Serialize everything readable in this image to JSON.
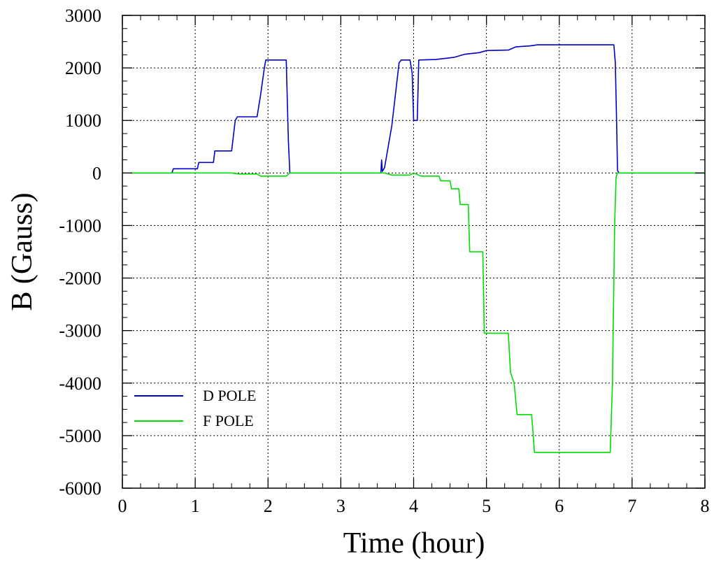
{
  "chart_data": {
    "type": "line",
    "xlabel": "Time (hour)",
    "ylabel": "B (Gauss)",
    "xlim": [
      0,
      8
    ],
    "ylim": [
      -6000,
      3000
    ],
    "x_ticks": [
      "0",
      "1",
      "2",
      "3",
      "4",
      "5",
      "6",
      "7",
      "8"
    ],
    "y_ticks": [
      "3000",
      "2000",
      "1000",
      "0",
      "-1000",
      "-2000",
      "-3000",
      "-4000",
      "-5000",
      "-6000"
    ],
    "grid": true,
    "legend_position": "bottom-left",
    "series": [
      {
        "name": "D POLE",
        "color": "#0000cc",
        "points": [
          [
            0.1,
            0
          ],
          [
            0.68,
            0
          ],
          [
            0.7,
            80
          ],
          [
            1.03,
            80
          ],
          [
            1.05,
            200
          ],
          [
            1.25,
            200
          ],
          [
            1.27,
            420
          ],
          [
            1.5,
            420
          ],
          [
            1.55,
            1000
          ],
          [
            1.58,
            1070
          ],
          [
            1.85,
            1070
          ],
          [
            1.9,
            1500
          ],
          [
            1.95,
            2000
          ],
          [
            1.97,
            2150
          ],
          [
            2.25,
            2150
          ],
          [
            2.28,
            600
          ],
          [
            2.3,
            0
          ],
          [
            3.55,
            0
          ],
          [
            3.56,
            250
          ],
          [
            3.57,
            30
          ],
          [
            3.6,
            100
          ],
          [
            3.65,
            500
          ],
          [
            3.7,
            900
          ],
          [
            3.75,
            1500
          ],
          [
            3.8,
            2100
          ],
          [
            3.83,
            2150
          ],
          [
            3.95,
            2150
          ],
          [
            3.98,
            1900
          ],
          [
            4.0,
            1000
          ],
          [
            4.05,
            1000
          ],
          [
            4.07,
            2150
          ],
          [
            4.3,
            2160
          ],
          [
            4.55,
            2200
          ],
          [
            4.7,
            2260
          ],
          [
            4.9,
            2290
          ],
          [
            5.0,
            2330
          ],
          [
            5.3,
            2340
          ],
          [
            5.4,
            2400
          ],
          [
            5.6,
            2420
          ],
          [
            5.7,
            2440
          ],
          [
            6.75,
            2440
          ],
          [
            6.77,
            2100
          ],
          [
            6.79,
            800
          ],
          [
            6.8,
            50
          ],
          [
            6.82,
            0
          ],
          [
            8.0,
            0
          ]
        ]
      },
      {
        "name": "F POLE",
        "color": "#00dd00",
        "points": [
          [
            0.1,
            0
          ],
          [
            1.5,
            0
          ],
          [
            1.6,
            -20
          ],
          [
            1.85,
            -20
          ],
          [
            1.9,
            -60
          ],
          [
            2.25,
            -60
          ],
          [
            2.3,
            0
          ],
          [
            3.6,
            0
          ],
          [
            3.7,
            -40
          ],
          [
            3.95,
            -40
          ],
          [
            4.0,
            0
          ],
          [
            4.1,
            -60
          ],
          [
            4.35,
            -60
          ],
          [
            4.37,
            -150
          ],
          [
            4.5,
            -150
          ],
          [
            4.52,
            -300
          ],
          [
            4.62,
            -300
          ],
          [
            4.64,
            -600
          ],
          [
            4.75,
            -600
          ],
          [
            4.77,
            -1500
          ],
          [
            4.95,
            -1500
          ],
          [
            4.97,
            -3050
          ],
          [
            5.3,
            -3050
          ],
          [
            5.33,
            -3800
          ],
          [
            5.38,
            -4000
          ],
          [
            5.42,
            -4600
          ],
          [
            5.62,
            -4600
          ],
          [
            5.66,
            -5320
          ],
          [
            6.7,
            -5320
          ],
          [
            6.73,
            -4000
          ],
          [
            6.76,
            -1000
          ],
          [
            6.78,
            -80
          ],
          [
            6.8,
            0
          ],
          [
            8.0,
            0
          ]
        ]
      }
    ]
  }
}
